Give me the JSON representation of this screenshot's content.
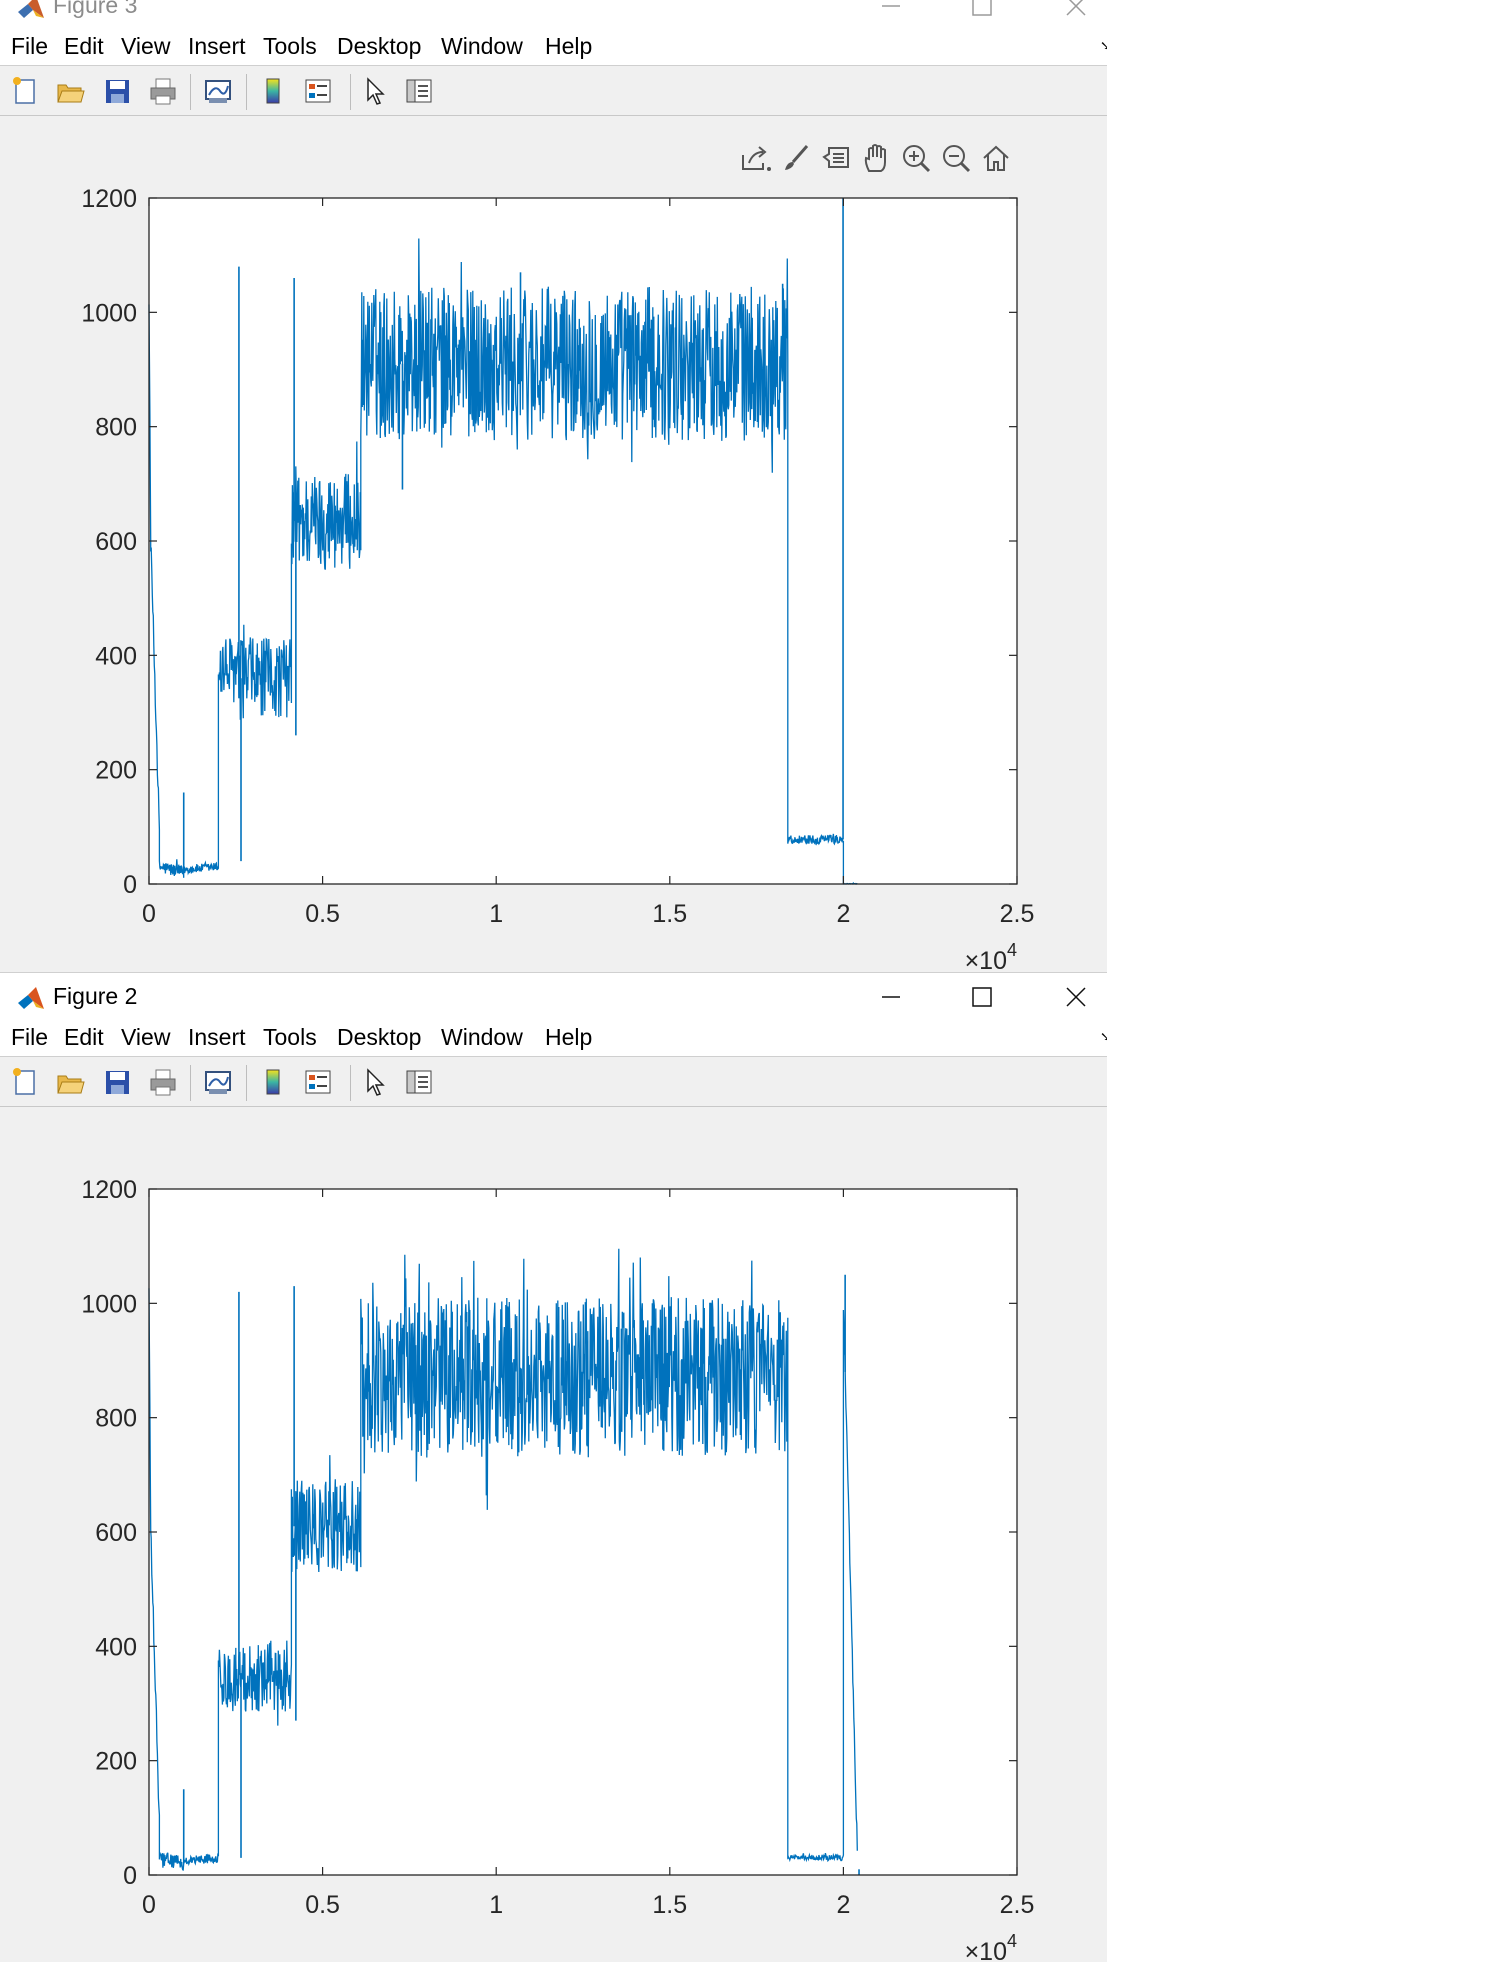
{
  "figures": [
    {
      "id": "figure3",
      "title": "Figure 3",
      "state": "inactive",
      "show_axes_toolbar": true,
      "series_color": "#0072bd",
      "chart_data": {
        "type": "line",
        "xlim": [
          0,
          25000
        ],
        "ylim": [
          0,
          1200
        ],
        "x_ticks": [
          0,
          5000,
          10000,
          15000,
          20000,
          25000
        ],
        "x_tick_labels": [
          "0",
          "0.5",
          "1",
          "1.5",
          "2",
          "2.5"
        ],
        "y_ticks": [
          0,
          200,
          400,
          600,
          800,
          1000,
          1200
        ],
        "y_tick_labels": [
          "0",
          "200",
          "400",
          "600",
          "800",
          "1000",
          "1200"
        ],
        "x_exponent_base": "×10",
        "x_exponent_power": "4",
        "grid": false,
        "segments": [
          {
            "x": [
              0,
              50
            ],
            "center": [
              1030,
              600
            ],
            "noise": 10
          },
          {
            "x": [
              50,
              300
            ],
            "center": [
              600,
              90
            ],
            "noise": 20
          },
          {
            "x": [
              300,
              1000
            ],
            "center": [
              30,
              20
            ],
            "noise": 12
          },
          {
            "x": [
              1000,
              2000
            ],
            "center": [
              25,
              30
            ],
            "noise": 8
          },
          {
            "x": [
              2000,
              2500
            ],
            "center": [
              375,
              375
            ],
            "noise": 60
          },
          {
            "x": [
              2500,
              4100
            ],
            "center": [
              360,
              360
            ],
            "noise": 70
          },
          {
            "x": [
              4100,
              6100
            ],
            "center": [
              635,
              635
            ],
            "noise": 85
          },
          {
            "x": [
              6100,
              18400
            ],
            "center": [
              910,
              910
            ],
            "noise": 135
          },
          {
            "x": [
              18400,
              20000
            ],
            "center": [
              78,
              78
            ],
            "noise": 8
          },
          {
            "x": [
              20000,
              20400
            ],
            "center": [
              0,
              0
            ],
            "noise": 1
          }
        ],
        "spikes": [
          {
            "x": 1000,
            "y": 160
          },
          {
            "x": 2590,
            "y": 1080
          },
          {
            "x": 2650,
            "y": 40
          },
          {
            "x": 4180,
            "y": 1060
          },
          {
            "x": 4230,
            "y": 260
          },
          {
            "x": 7300,
            "y": 690
          },
          {
            "x": 10700,
            "y": 1070
          },
          {
            "x": 18250,
            "y": 1050
          },
          {
            "x": 19990,
            "y": 1200
          },
          {
            "x": 20020,
            "y": 0
          }
        ]
      }
    },
    {
      "id": "figure2",
      "title": "Figure 2",
      "state": "active",
      "show_axes_toolbar": false,
      "series_color": "#0072bd",
      "chart_data": {
        "type": "line",
        "xlim": [
          0,
          25000
        ],
        "ylim": [
          0,
          1200
        ],
        "x_ticks": [
          0,
          5000,
          10000,
          15000,
          20000,
          25000
        ],
        "x_tick_labels": [
          "0",
          "0.5",
          "1",
          "1.5",
          "2",
          "2.5"
        ],
        "y_ticks": [
          0,
          200,
          400,
          600,
          800,
          1000,
          1200
        ],
        "y_tick_labels": [
          "0",
          "200",
          "400",
          "600",
          "800",
          "1000",
          "1200"
        ],
        "x_exponent_base": "×10",
        "x_exponent_power": "4",
        "grid": false,
        "segments": [
          {
            "x": [
              0,
              50
            ],
            "center": [
              1030,
              600
            ],
            "noise": 10
          },
          {
            "x": [
              50,
              300
            ],
            "center": [
              600,
              90
            ],
            "noise": 20
          },
          {
            "x": [
              300,
              1000
            ],
            "center": [
              30,
              20
            ],
            "noise": 12
          },
          {
            "x": [
              1000,
              2000
            ],
            "center": [
              25,
              30
            ],
            "noise": 8
          },
          {
            "x": [
              2000,
              2500
            ],
            "center": [
              345,
              345
            ],
            "noise": 55
          },
          {
            "x": [
              2500,
              4100
            ],
            "center": [
              350,
              350
            ],
            "noise": 65
          },
          {
            "x": [
              4100,
              6100
            ],
            "center": [
              610,
              610
            ],
            "noise": 80
          },
          {
            "x": [
              6100,
              18400
            ],
            "center": [
              870,
              870
            ],
            "noise": 140
          },
          {
            "x": [
              18400,
              20000
            ],
            "center": [
              30,
              30
            ],
            "noise": 5
          },
          {
            "x": [
              20000,
              20400
            ],
            "center": [
              1000,
              40
            ],
            "noise": 12
          }
        ],
        "spikes": [
          {
            "x": 1000,
            "y": 150
          },
          {
            "x": 2590,
            "y": 1020
          },
          {
            "x": 2650,
            "y": 30
          },
          {
            "x": 4180,
            "y": 1030
          },
          {
            "x": 4230,
            "y": 270
          },
          {
            "x": 20050,
            "y": 1050
          },
          {
            "x": 20450,
            "y": 10
          }
        ]
      }
    }
  ],
  "menu": [
    "File",
    "Edit",
    "View",
    "Insert",
    "Tools",
    "Desktop",
    "Window",
    "Help"
  ],
  "toolbar_icons": [
    "new-figure-icon",
    "open-file-icon",
    "save-icon",
    "print-icon",
    "link-plot-icon",
    "colorbar-icon",
    "legend-icon",
    "edit-plot-icon",
    "property-inspector-icon"
  ],
  "axes_toolbar_icons": [
    "export-icon",
    "brush-icon",
    "data-tips-icon",
    "pan-icon",
    "zoom-in-icon",
    "zoom-out-icon",
    "home-icon"
  ]
}
